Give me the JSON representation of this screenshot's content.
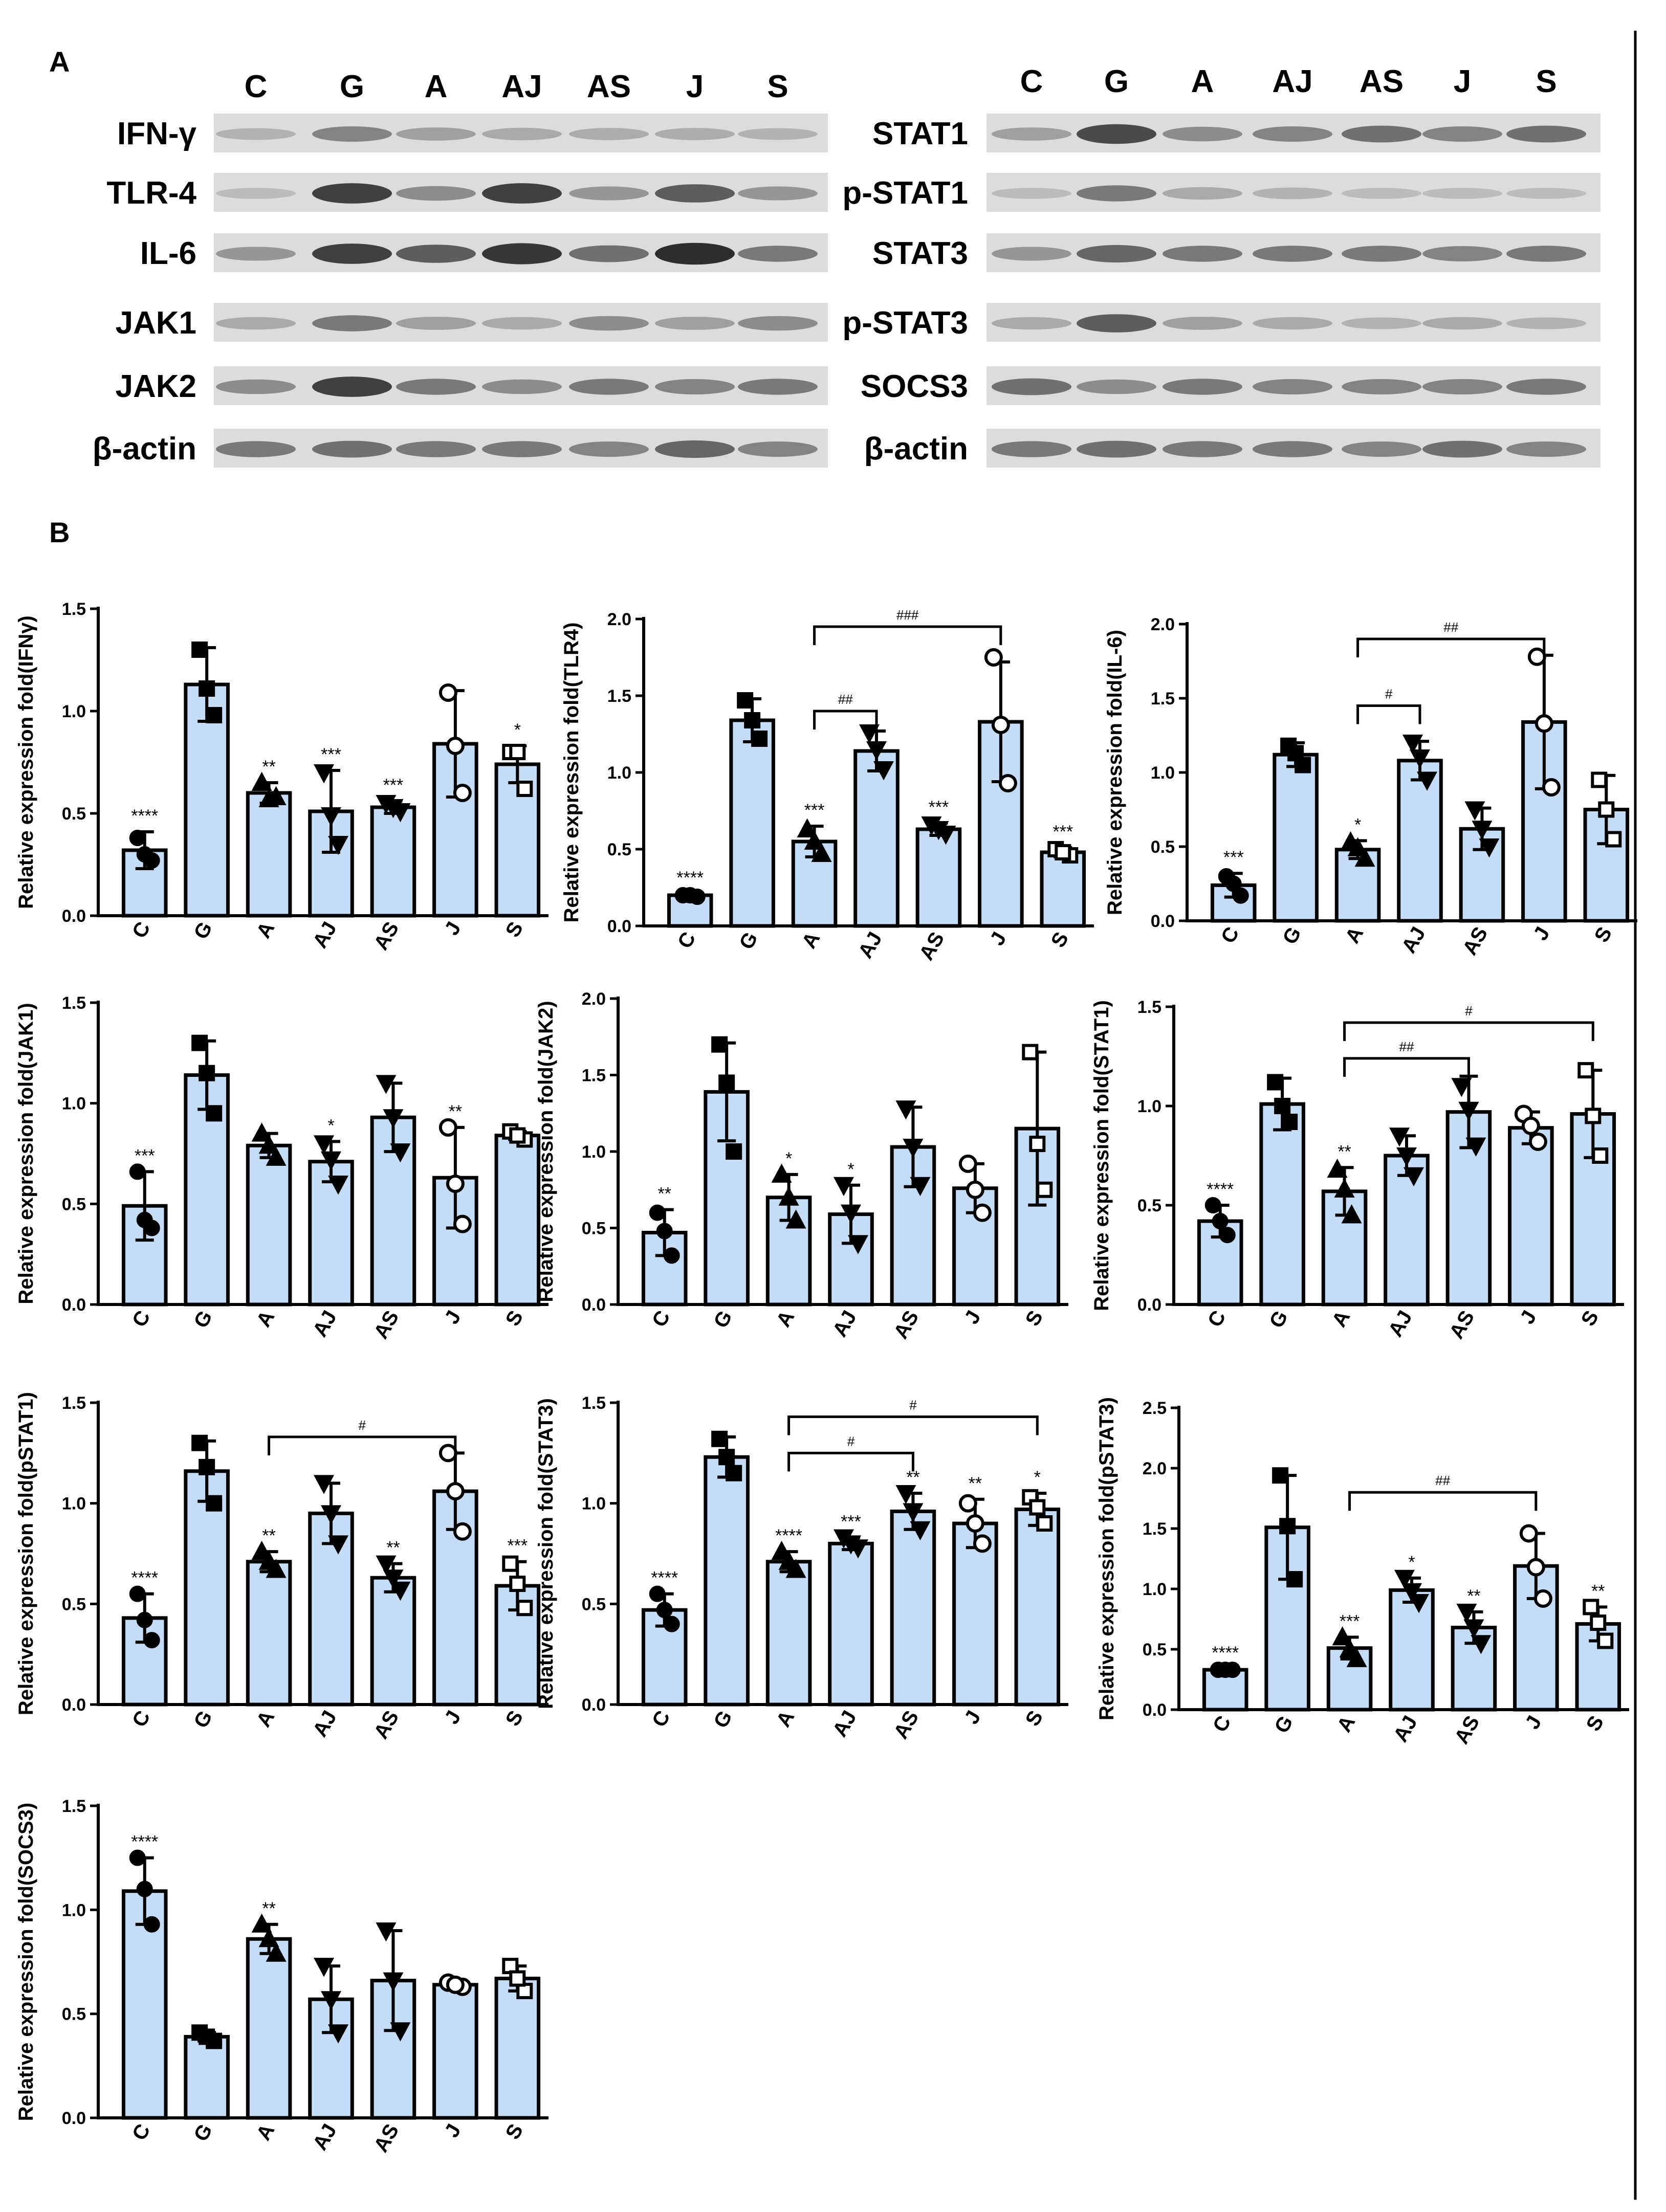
{
  "panel_a": {
    "letter": "A",
    "lanes": [
      "C",
      "G",
      "A",
      "AJ",
      "AS",
      "J",
      "S"
    ],
    "left_blots": [
      {
        "label": "IFN-γ",
        "intensities": [
          0.25,
          0.5,
          0.35,
          0.3,
          0.28,
          0.28,
          0.25
        ]
      },
      {
        "label": "TLR-4",
        "intensities": [
          0.2,
          0.85,
          0.45,
          0.85,
          0.4,
          0.7,
          0.4
        ]
      },
      {
        "label": "IL-6",
        "intensities": [
          0.4,
          0.85,
          0.7,
          0.9,
          0.6,
          0.95,
          0.55
        ]
      },
      {
        "label": "JAK1",
        "intensities": [
          0.3,
          0.55,
          0.35,
          0.3,
          0.45,
          0.35,
          0.45
        ]
      },
      {
        "label": "JAK2",
        "intensities": [
          0.45,
          0.85,
          0.55,
          0.45,
          0.55,
          0.5,
          0.55
        ]
      },
      {
        "label": "β-actin",
        "intensities": [
          0.55,
          0.6,
          0.55,
          0.55,
          0.5,
          0.65,
          0.5
        ]
      }
    ],
    "right_blots": [
      {
        "label": "STAT1",
        "intensities": [
          0.35,
          0.8,
          0.45,
          0.5,
          0.6,
          0.5,
          0.6
        ]
      },
      {
        "label": "p-STAT1",
        "intensities": [
          0.2,
          0.55,
          0.3,
          0.25,
          0.2,
          0.2,
          0.2
        ]
      },
      {
        "label": "STAT3",
        "intensities": [
          0.4,
          0.65,
          0.55,
          0.55,
          0.55,
          0.5,
          0.55
        ]
      },
      {
        "label": "p-STAT3",
        "intensities": [
          0.3,
          0.7,
          0.35,
          0.3,
          0.25,
          0.3,
          0.25
        ]
      },
      {
        "label": "SOCS3",
        "intensities": [
          0.6,
          0.45,
          0.55,
          0.5,
          0.5,
          0.5,
          0.55
        ]
      },
      {
        "label": "β-actin",
        "intensities": [
          0.55,
          0.6,
          0.55,
          0.55,
          0.5,
          0.6,
          0.5
        ]
      }
    ]
  },
  "panel_b": {
    "letter": "B"
  },
  "chart_data": [
    {
      "type": "bar",
      "title": "",
      "xlabel": "",
      "ylabel": "Relative expression fold(IFNγ)",
      "ylim": [
        0,
        1.5
      ],
      "yticks": [
        "0.0",
        "0.5",
        "1.0",
        "1.5"
      ],
      "categories": [
        "C",
        "G",
        "A",
        "AJ",
        "AS",
        "J",
        "S"
      ],
      "values": [
        0.32,
        1.13,
        0.6,
        0.51,
        0.53,
        0.84,
        0.74
      ],
      "errors": [
        0.09,
        0.18,
        0.05,
        0.2,
        0.03,
        0.26,
        0.09
      ],
      "points": [
        [
          0.38,
          0.27,
          0.3
        ],
        [
          1.3,
          0.98,
          1.11
        ],
        [
          0.65,
          0.58,
          0.57
        ],
        [
          0.7,
          0.35,
          0.49
        ],
        [
          0.55,
          0.51,
          0.53
        ],
        [
          1.09,
          0.6,
          0.83
        ],
        [
          0.8,
          0.62,
          0.8
        ]
      ],
      "markers": [
        "circle",
        "square",
        "triangle",
        "tri-down",
        "tri-down",
        "open-circle",
        "open-square"
      ],
      "sig": [
        "****",
        "",
        "**",
        "***",
        "***",
        "",
        "*"
      ],
      "brackets": []
    },
    {
      "type": "bar",
      "title": "",
      "xlabel": "",
      "ylabel": "Relative expression fold(TLR4)",
      "ylim": [
        0,
        2.0
      ],
      "yticks": [
        "0.0",
        "0.5",
        "1.0",
        "1.5",
        "2.0"
      ],
      "categories": [
        "C",
        "G",
        "A",
        "AJ",
        "AS",
        "J",
        "S"
      ],
      "values": [
        0.2,
        1.34,
        0.55,
        1.14,
        0.63,
        1.33,
        0.48
      ],
      "errors": [
        0.01,
        0.14,
        0.1,
        0.13,
        0.04,
        0.39,
        0.03
      ],
      "points": [
        [
          0.2,
          0.19,
          0.2
        ],
        [
          1.47,
          1.22,
          1.34
        ],
        [
          0.63,
          0.47,
          0.55
        ],
        [
          1.26,
          1.02,
          1.15
        ],
        [
          0.66,
          0.6,
          0.63
        ],
        [
          1.75,
          0.93,
          1.31
        ],
        [
          0.5,
          0.46,
          0.48
        ]
      ],
      "markers": [
        "circle",
        "square",
        "triangle",
        "tri-down",
        "tri-down",
        "open-circle",
        "open-square"
      ],
      "sig": [
        "****",
        "",
        "***",
        "",
        "***",
        "",
        "***"
      ],
      "brackets": [
        {
          "from": 2,
          "to": 3,
          "y": 1.4,
          "label": "##"
        },
        {
          "from": 2,
          "to": 5,
          "y": 1.95,
          "label": "###"
        }
      ]
    },
    {
      "type": "bar",
      "title": "",
      "xlabel": "",
      "ylabel": "Relative expression fold(IL-6)",
      "ylim": [
        0,
        2.0
      ],
      "yticks": [
        "0.0",
        "0.5",
        "1.0",
        "1.5",
        "2.0"
      ],
      "categories": [
        "C",
        "G",
        "A",
        "AJ",
        "AS",
        "J",
        "S"
      ],
      "values": [
        0.24,
        1.12,
        0.48,
        1.08,
        0.62,
        1.34,
        0.75
      ],
      "errors": [
        0.08,
        0.08,
        0.06,
        0.13,
        0.14,
        0.45,
        0.23
      ],
      "points": [
        [
          0.3,
          0.17,
          0.25
        ],
        [
          1.18,
          1.05,
          1.13
        ],
        [
          0.53,
          0.42,
          0.49
        ],
        [
          1.2,
          0.95,
          1.1
        ],
        [
          0.75,
          0.5,
          0.62
        ],
        [
          1.78,
          0.9,
          1.33
        ],
        [
          0.95,
          0.55,
          0.75
        ]
      ],
      "markers": [
        "circle",
        "square",
        "triangle",
        "tri-down",
        "tri-down",
        "open-circle",
        "open-square"
      ],
      "sig": [
        "***",
        "",
        "*",
        "",
        "",
        "",
        ""
      ],
      "brackets": [
        {
          "from": 2,
          "to": 3,
          "y": 1.45,
          "label": "#"
        },
        {
          "from": 2,
          "to": 5,
          "y": 1.9,
          "label": "##"
        }
      ]
    },
    {
      "type": "bar",
      "title": "",
      "xlabel": "",
      "ylabel": "Relative expression fold(JAK1)",
      "ylim": [
        0,
        1.5
      ],
      "yticks": [
        "0.0",
        "0.5",
        "1.0",
        "1.5"
      ],
      "categories": [
        "C",
        "G",
        "A",
        "AJ",
        "AS",
        "J",
        "S"
      ],
      "values": [
        0.49,
        1.14,
        0.79,
        0.71,
        0.93,
        0.63,
        0.84
      ],
      "errors": [
        0.17,
        0.17,
        0.06,
        0.1,
        0.17,
        0.25,
        0.02
      ],
      "points": [
        [
          0.66,
          0.38,
          0.42
        ],
        [
          1.3,
          0.95,
          1.15
        ],
        [
          0.85,
          0.73,
          0.79
        ],
        [
          0.8,
          0.6,
          0.72
        ],
        [
          1.1,
          0.76,
          0.93
        ],
        [
          0.88,
          0.4,
          0.6
        ],
        [
          0.86,
          0.82,
          0.84
        ]
      ],
      "markers": [
        "circle",
        "square",
        "triangle",
        "tri-down",
        "tri-down",
        "open-circle",
        "open-square"
      ],
      "sig": [
        "***",
        "",
        "",
        "*",
        "",
        "**",
        ""
      ],
      "brackets": []
    },
    {
      "type": "bar",
      "title": "",
      "xlabel": "",
      "ylabel": "Relative expression fold(JAK2)",
      "ylim": [
        0,
        2.0
      ],
      "yticks": [
        "0.0",
        "0.5",
        "1.0",
        "1.5",
        "2.0"
      ],
      "categories": [
        "C",
        "G",
        "A",
        "AJ",
        "AS",
        "J",
        "S"
      ],
      "values": [
        0.47,
        1.39,
        0.7,
        0.59,
        1.03,
        0.76,
        1.15
      ],
      "errors": [
        0.15,
        0.32,
        0.15,
        0.19,
        0.26,
        0.16,
        0.5
      ],
      "points": [
        [
          0.6,
          0.32,
          0.48
        ],
        [
          1.7,
          1.0,
          1.45
        ],
        [
          0.85,
          0.55,
          0.7
        ],
        [
          0.78,
          0.4,
          0.6
        ],
        [
          1.28,
          0.78,
          1.03
        ],
        [
          0.92,
          0.6,
          0.75
        ],
        [
          1.65,
          0.75,
          1.05
        ]
      ],
      "markers": [
        "circle",
        "square",
        "triangle",
        "tri-down",
        "tri-down",
        "open-circle",
        "open-square"
      ],
      "sig": [
        "**",
        "",
        "*",
        "*",
        "",
        "",
        ""
      ],
      "brackets": []
    },
    {
      "type": "bar",
      "title": "",
      "xlabel": "",
      "ylabel": "Relative expression fold(STAT1)",
      "ylim": [
        0,
        1.5
      ],
      "yticks": [
        "0.0",
        "0.5",
        "1.0",
        "1.5"
      ],
      "categories": [
        "C",
        "G",
        "A",
        "AJ",
        "AS",
        "J",
        "S"
      ],
      "values": [
        0.42,
        1.01,
        0.57,
        0.75,
        0.97,
        0.89,
        0.96
      ],
      "errors": [
        0.08,
        0.13,
        0.12,
        0.1,
        0.18,
        0.08,
        0.22
      ],
      "points": [
        [
          0.5,
          0.35,
          0.42
        ],
        [
          1.12,
          0.92,
          1.0
        ],
        [
          0.68,
          0.45,
          0.58
        ],
        [
          0.85,
          0.65,
          0.75
        ],
        [
          1.1,
          0.8,
          0.98
        ],
        [
          0.96,
          0.82,
          0.9
        ],
        [
          1.18,
          0.75,
          0.95
        ]
      ],
      "markers": [
        "circle",
        "square",
        "triangle",
        "tri-down",
        "tri-down",
        "open-circle",
        "open-square"
      ],
      "sig": [
        "****",
        "",
        "**",
        "",
        "",
        "",
        ""
      ],
      "brackets": [
        {
          "from": 2,
          "to": 4,
          "y": 1.24,
          "label": "##"
        },
        {
          "from": 2,
          "to": 6,
          "y": 1.42,
          "label": "#"
        }
      ]
    },
    {
      "type": "bar",
      "title": "",
      "xlabel": "",
      "ylabel": "Relative expression fold(pSTAT1)",
      "ylim": [
        0,
        1.5
      ],
      "yticks": [
        "0.0",
        "0.5",
        "1.0",
        "1.5"
      ],
      "categories": [
        "C",
        "G",
        "A",
        "AJ",
        "AS",
        "J",
        "S"
      ],
      "values": [
        0.43,
        1.16,
        0.71,
        0.95,
        0.63,
        1.06,
        0.59
      ],
      "errors": [
        0.12,
        0.15,
        0.05,
        0.15,
        0.07,
        0.19,
        0.12
      ],
      "points": [
        [
          0.55,
          0.32,
          0.42
        ],
        [
          1.3,
          1.0,
          1.18
        ],
        [
          0.76,
          0.67,
          0.71
        ],
        [
          1.1,
          0.8,
          0.95
        ],
        [
          0.7,
          0.57,
          0.63
        ],
        [
          1.25,
          0.86,
          1.06
        ],
        [
          0.7,
          0.48,
          0.6
        ]
      ],
      "markers": [
        "circle",
        "square",
        "triangle",
        "tri-down",
        "tri-down",
        "open-circle",
        "open-square"
      ],
      "sig": [
        "****",
        "",
        "**",
        "",
        "**",
        "",
        "***"
      ],
      "brackets": [
        {
          "from": 2,
          "to": 5,
          "y": 1.33,
          "label": "#"
        }
      ]
    },
    {
      "type": "bar",
      "title": "",
      "xlabel": "",
      "ylabel": "Relative expression fold(STAT3)",
      "ylim": [
        0,
        1.5
      ],
      "yticks": [
        "0.0",
        "0.5",
        "1.0",
        "1.5"
      ],
      "categories": [
        "C",
        "G",
        "A",
        "AJ",
        "AS",
        "J",
        "S"
      ],
      "values": [
        0.47,
        1.23,
        0.71,
        0.8,
        0.96,
        0.9,
        0.97
      ],
      "errors": [
        0.08,
        0.1,
        0.05,
        0.03,
        0.09,
        0.12,
        0.08
      ],
      "points": [
        [
          0.55,
          0.4,
          0.47
        ],
        [
          1.32,
          1.15,
          1.23
        ],
        [
          0.76,
          0.67,
          0.71
        ],
        [
          0.83,
          0.78,
          0.8
        ],
        [
          1.05,
          0.87,
          0.96
        ],
        [
          1.0,
          0.8,
          0.9
        ],
        [
          1.03,
          0.9,
          0.98
        ]
      ],
      "markers": [
        "circle",
        "square",
        "triangle",
        "tri-down",
        "tri-down",
        "open-circle",
        "open-square"
      ],
      "sig": [
        "****",
        "",
        "****",
        "***",
        "**",
        "**",
        "*"
      ],
      "brackets": [
        {
          "from": 2,
          "to": 4,
          "y": 1.25,
          "label": "#"
        },
        {
          "from": 2,
          "to": 6,
          "y": 1.43,
          "label": "#"
        }
      ]
    },
    {
      "type": "bar",
      "title": "",
      "xlabel": "",
      "ylabel": "Relative expression fold(pSTAT3)",
      "ylim": [
        0,
        2.5
      ],
      "yticks": [
        "0.0",
        "0.5",
        "1.0",
        "1.5",
        "2.0",
        "2.5"
      ],
      "categories": [
        "C",
        "G",
        "A",
        "AJ",
        "AS",
        "J",
        "S"
      ],
      "values": [
        0.33,
        1.51,
        0.51,
        0.99,
        0.68,
        1.19,
        0.71
      ],
      "errors": [
        0.01,
        0.43,
        0.09,
        0.1,
        0.13,
        0.27,
        0.14
      ],
      "points": [
        [
          0.33,
          0.33,
          0.33
        ],
        [
          1.94,
          1.08,
          1.52
        ],
        [
          0.6,
          0.42,
          0.5
        ],
        [
          1.09,
          0.89,
          0.98
        ],
        [
          0.81,
          0.55,
          0.68
        ],
        [
          1.46,
          0.92,
          1.18
        ],
        [
          0.85,
          0.57,
          0.72
        ]
      ],
      "markers": [
        "circle",
        "square",
        "triangle",
        "tri-down",
        "tri-down",
        "open-circle",
        "open-square"
      ],
      "sig": [
        "****",
        "",
        "***",
        "*",
        "**",
        "",
        "**"
      ],
      "brackets": [
        {
          "from": 2,
          "to": 5,
          "y": 1.8,
          "label": "##"
        }
      ]
    },
    {
      "type": "bar",
      "title": "",
      "xlabel": "",
      "ylabel": "Relative expression fold(SOCS3)",
      "ylim": [
        0,
        1.5
      ],
      "yticks": [
        "0.0",
        "0.5",
        "1.0",
        "1.5"
      ],
      "categories": [
        "C",
        "G",
        "A",
        "AJ",
        "AS",
        "J",
        "S"
      ],
      "values": [
        1.09,
        0.39,
        0.86,
        0.57,
        0.66,
        0.64,
        0.67
      ],
      "errors": [
        0.16,
        0.02,
        0.07,
        0.16,
        0.24,
        0.01,
        0.06
      ],
      "points": [
        [
          1.25,
          0.93,
          1.1
        ],
        [
          0.41,
          0.37,
          0.39
        ],
        [
          0.93,
          0.79,
          0.86
        ],
        [
          0.73,
          0.41,
          0.57
        ],
        [
          0.9,
          0.42,
          0.66
        ],
        [
          0.65,
          0.63,
          0.64
        ],
        [
          0.73,
          0.61,
          0.67
        ]
      ],
      "markers": [
        "circle",
        "square",
        "triangle",
        "tri-down",
        "tri-down",
        "open-circle",
        "open-square"
      ],
      "sig": [
        "****",
        "",
        "**",
        "",
        "",
        "",
        ""
      ],
      "brackets": []
    }
  ]
}
